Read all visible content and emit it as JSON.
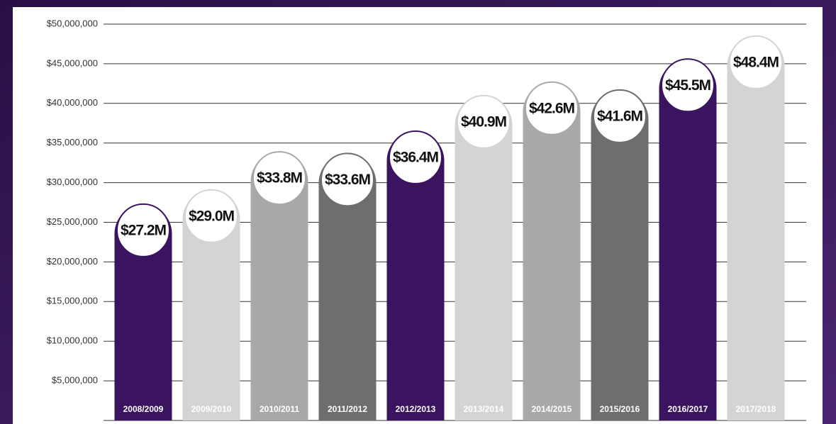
{
  "chart_data": {
    "type": "bar",
    "categories": [
      "2008/2009",
      "2009/2010",
      "2010/2011",
      "2011/2012",
      "2012/2013",
      "2013/2014",
      "2014/2015",
      "2015/2016",
      "2016/2017",
      "2017/2018"
    ],
    "values": [
      27200000,
      29000000,
      33800000,
      33600000,
      36400000,
      40900000,
      42600000,
      41600000,
      45500000,
      48400000
    ],
    "value_labels": [
      "$27.2M",
      "$29.0M",
      "$33.8M",
      "$33.6M",
      "$36.4M",
      "$40.9M",
      "$42.6M",
      "$41.6M",
      "$45.5M",
      "$48.4M"
    ],
    "colors": [
      "#3b1460",
      "#d4d4d4",
      "#a7a8aa",
      "#6d6e70",
      "#3b1460",
      "#d4d4d4",
      "#a7a8aa",
      "#6d6e70",
      "#3b1460",
      "#d4d4d4"
    ],
    "ylim": [
      0,
      50000000
    ],
    "yticks": [
      {
        "value": 5000000,
        "label": "$5,000,000"
      },
      {
        "value": 10000000,
        "label": "$10,000,000"
      },
      {
        "value": 15000000,
        "label": "$15,000,000"
      },
      {
        "value": 20000000,
        "label": "$20,000,000"
      },
      {
        "value": 25000000,
        "label": "$25,000,000"
      },
      {
        "value": 30000000,
        "label": "$30,000,000"
      },
      {
        "value": 35000000,
        "label": "$35,000,000"
      },
      {
        "value": 40000000,
        "label": "$40,000,000"
      },
      {
        "value": 45000000,
        "label": "$45,000,000"
      },
      {
        "value": 50000000,
        "label": "$50,000,000"
      }
    ],
    "grid": true
  }
}
